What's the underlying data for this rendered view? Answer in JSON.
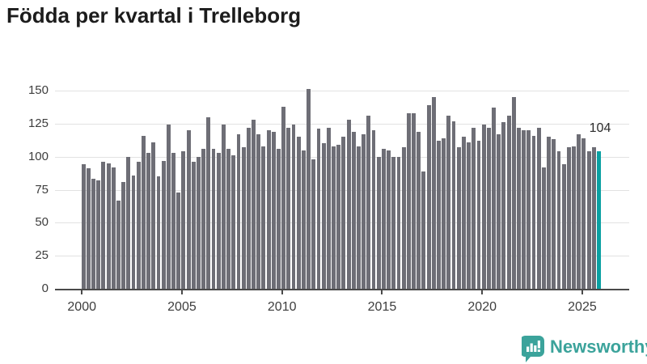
{
  "title": "Födda per kvartal i Trelleborg",
  "annotation": {
    "value_label": "104"
  },
  "brand": {
    "name": "Newsworthy",
    "logo_icon": "speech-bubble-with-bar-chart-and-exclamation"
  },
  "colors": {
    "bar": "#6e6e76",
    "highlight": "#0aa0a2",
    "brand_teal": "#3ba39b",
    "grid": "#e2e2e2",
    "axis": "#4a4a4a",
    "title_text": "#1c1c1c",
    "axis_text": "#3d3d3d",
    "annotation_text": "#2b2b2b",
    "background": "#ffffff"
  },
  "chart_data": {
    "type": "bar",
    "title": "Födda per kvartal i Trelleborg",
    "x_description": "quarters from 2000 Q1 to 2025 Q4",
    "frequency": "quarterly",
    "x_start_year": 2000,
    "quarters_per_year": 4,
    "values": [
      94,
      91,
      83,
      82,
      96,
      95,
      92,
      67,
      81,
      100,
      86,
      96,
      116,
      103,
      111,
      85,
      97,
      124,
      103,
      73,
      104,
      120,
      96,
      100,
      106,
      130,
      106,
      103,
      124,
      106,
      101,
      117,
      107,
      122,
      128,
      117,
      108,
      120,
      119,
      106,
      138,
      122,
      124,
      115,
      105,
      151,
      98,
      121,
      110,
      122,
      108,
      109,
      115,
      128,
      119,
      108,
      117,
      131,
      120,
      100,
      106,
      105,
      100,
      100,
      107,
      133,
      133,
      119,
      89,
      139,
      145,
      112,
      114,
      131,
      127,
      107,
      115,
      111,
      122,
      112,
      124,
      122,
      137,
      117,
      126,
      131,
      145,
      122,
      120,
      120,
      116,
      122,
      92,
      115,
      113,
      104,
      94,
      107,
      108,
      117,
      114,
      104,
      107,
      104
    ],
    "highlight_index": 103,
    "highlight_value_label": "104",
    "y_ticks": [
      0,
      25,
      50,
      75,
      100,
      125,
      150
    ],
    "x_ticks": [
      2000,
      2005,
      2010,
      2015,
      2020,
      2025
    ],
    "ylim": [
      0,
      150
    ],
    "grid": "horizontal",
    "legend": "none"
  }
}
